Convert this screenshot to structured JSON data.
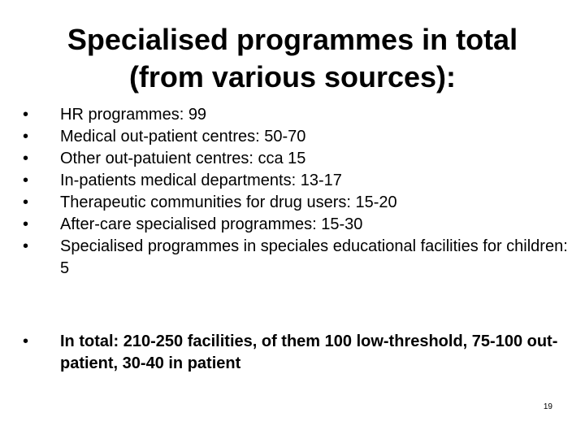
{
  "slide": {
    "title_line1": "Specialised programmes in total",
    "title_line2": "(from various sources):",
    "bullet_glyph": "•",
    "bullets": [
      {
        "text": "HR programmes: 99"
      },
      {
        "text": "Medical out-patient centres: 50-70"
      },
      {
        "text": "Other out-patuient centres: cca 15"
      },
      {
        "text": "In-patients medical departments: 13-17"
      },
      {
        "text": "Therapeutic communities for drug users: 15-20"
      },
      {
        "text": "After-care specialised programmes: 15-30"
      },
      {
        "text": "Specialised programmes in speciales educational facilities for children: 5"
      }
    ],
    "summary": {
      "text": "In total: 210-250 facilities, of them 100 low-threshold, 75-100 out-patient, 30-40 in patient"
    },
    "page_number": "19"
  }
}
